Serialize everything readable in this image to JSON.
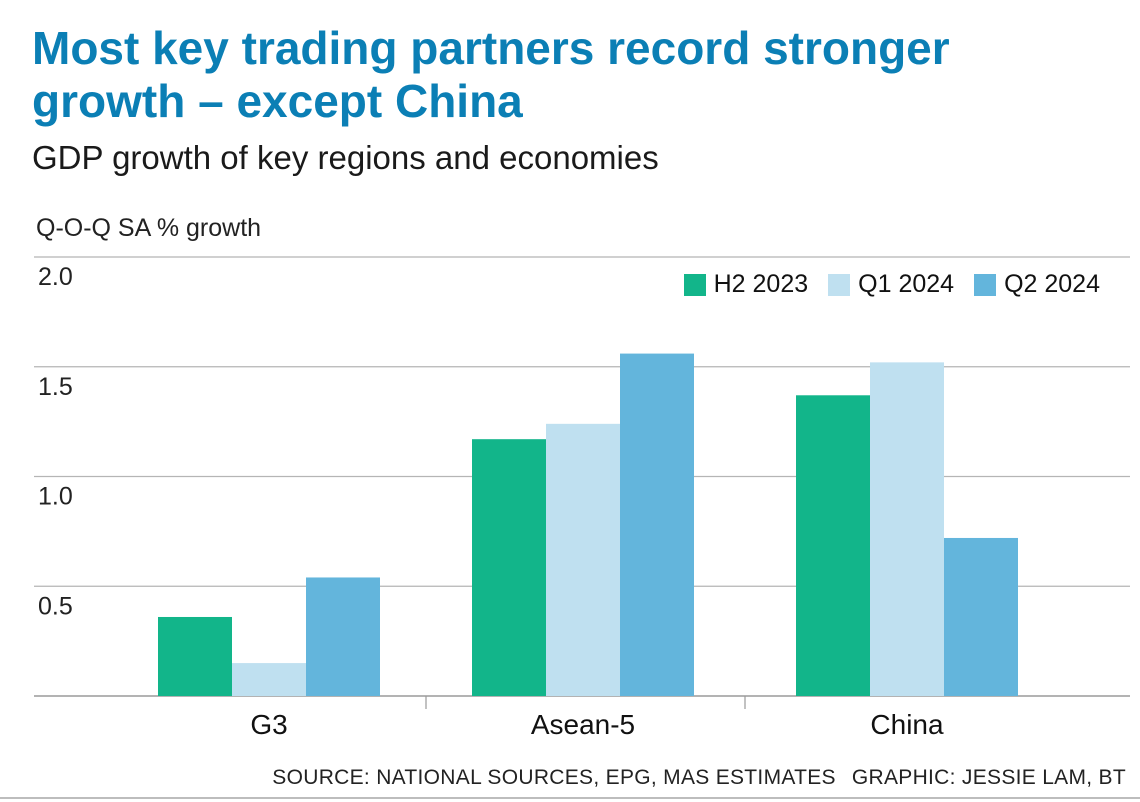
{
  "header": {
    "title_line1": "Most key trading partners record stronger",
    "title_line2": "growth – except China",
    "subtitle": "GDP growth of key regions and economies"
  },
  "footer": {
    "source": "SOURCE: NATIONAL SOURCES, EPG, MAS ESTIMATES",
    "credit": "GRAPHIC: JESSIE LAM, BT"
  },
  "colors": {
    "title": "#0b7fb5",
    "series": [
      "#12b58a",
      "#bfe0f0",
      "#63b5dc"
    ],
    "grid": "#b5b5b5"
  },
  "chart_data": {
    "type": "bar",
    "title": "Most key trading partners record stronger growth – except China",
    "subtitle": "GDP growth of key regions and economies",
    "ylabel": "Q-O-Q SA % growth",
    "xlabel": "",
    "categories": [
      "G3",
      "Asean-5",
      "China"
    ],
    "series": [
      {
        "name": "H2 2023",
        "values": [
          0.36,
          1.17,
          1.37
        ]
      },
      {
        "name": "Q1 2024",
        "values": [
          0.15,
          1.24,
          1.52
        ]
      },
      {
        "name": "Q2 2024",
        "values": [
          0.54,
          1.56,
          0.72
        ]
      }
    ],
    "ylim": [
      0,
      2.0
    ],
    "yticks": [
      0.5,
      1.0,
      1.5,
      2.0
    ],
    "ytick_labels": [
      "0.5",
      "1.0",
      "1.5",
      "2.0"
    ],
    "legend": "top-right",
    "grid": true
  }
}
